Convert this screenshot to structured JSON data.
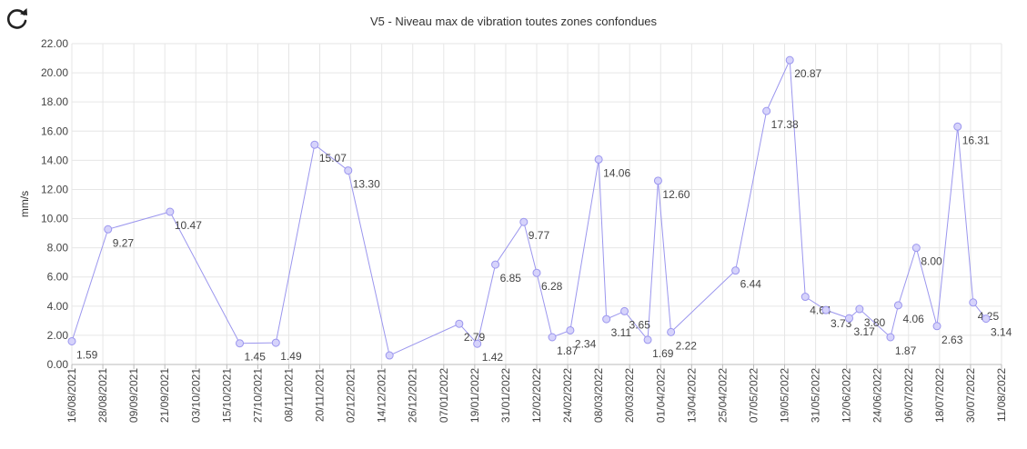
{
  "chart_data": {
    "type": "line",
    "title": "V5 - Niveau max de vibration toutes zones confondues",
    "xlabel": "",
    "ylabel": "mm/s",
    "ylim": [
      0,
      22
    ],
    "y_ticks": [
      "0.00",
      "2.00",
      "4.00",
      "6.00",
      "8.00",
      "10.00",
      "12.00",
      "14.00",
      "16.00",
      "18.00",
      "20.00",
      "22.00"
    ],
    "x_ticks": [
      "16/08/2021",
      "28/08/2021",
      "09/09/2021",
      "21/09/2021",
      "03/10/2021",
      "15/10/2021",
      "27/10/2021",
      "08/11/2021",
      "20/11/2021",
      "02/12/2021",
      "14/12/2021",
      "26/12/2021",
      "07/01/2022",
      "19/01/2022",
      "31/01/2022",
      "12/02/2022",
      "24/02/2022",
      "08/03/2022",
      "20/03/2022",
      "01/04/2022",
      "13/04/2022",
      "25/04/2022",
      "07/05/2022",
      "19/05/2022",
      "31/05/2022",
      "12/06/2022",
      "24/06/2022",
      "06/07/2022",
      "18/07/2022",
      "30/07/2022",
      "11/08/2022"
    ],
    "xlim": [
      "2021-08-16",
      "2022-08-11"
    ],
    "grid": true,
    "series": [
      {
        "name": "",
        "color": "#9b96ee",
        "marker_fill": "#d6d3fb",
        "points": [
          {
            "x": "2021-08-16",
            "y": 1.59,
            "label": "1.59"
          },
          {
            "x": "2021-08-30",
            "y": 9.27,
            "label": "9.27"
          },
          {
            "x": "2021-09-23",
            "y": 10.47,
            "label": "10.47"
          },
          {
            "x": "2021-10-20",
            "y": 1.45,
            "label": "1.45"
          },
          {
            "x": "2021-11-03",
            "y": 1.49,
            "label": "1.49"
          },
          {
            "x": "2021-11-18",
            "y": 15.07,
            "label": "15.07"
          },
          {
            "x": "2021-12-01",
            "y": 13.3,
            "label": "13.30"
          },
          {
            "x": "2021-12-17",
            "y": 0.62,
            "label": ""
          },
          {
            "x": "2022-01-13",
            "y": 2.79,
            "label": "2.79"
          },
          {
            "x": "2022-01-20",
            "y": 1.42,
            "label": "1.42"
          },
          {
            "x": "2022-01-27",
            "y": 6.85,
            "label": "6.85"
          },
          {
            "x": "2022-02-07",
            "y": 9.77,
            "label": "9.77"
          },
          {
            "x": "2022-02-12",
            "y": 6.28,
            "label": "6.28"
          },
          {
            "x": "2022-02-18",
            "y": 1.87,
            "label": "1.87"
          },
          {
            "x": "2022-02-25",
            "y": 2.34,
            "label": "2.34"
          },
          {
            "x": "2022-03-08",
            "y": 14.06,
            "label": "14.06"
          },
          {
            "x": "2022-03-11",
            "y": 3.11,
            "label": "3.11"
          },
          {
            "x": "2022-03-18",
            "y": 3.65,
            "label": "3.65"
          },
          {
            "x": "2022-03-27",
            "y": 1.69,
            "label": "1.69"
          },
          {
            "x": "2022-03-31",
            "y": 12.6,
            "label": "12.60"
          },
          {
            "x": "2022-04-05",
            "y": 2.22,
            "label": "2.22"
          },
          {
            "x": "2022-04-30",
            "y": 6.44,
            "label": "6.44"
          },
          {
            "x": "2022-05-12",
            "y": 17.38,
            "label": "17.38"
          },
          {
            "x": "2022-05-21",
            "y": 20.87,
            "label": "20.87"
          },
          {
            "x": "2022-05-27",
            "y": 4.64,
            "label": "4.64"
          },
          {
            "x": "2022-06-04",
            "y": 3.73,
            "label": "3.73"
          },
          {
            "x": "2022-06-13",
            "y": 3.17,
            "label": "3.17"
          },
          {
            "x": "2022-06-17",
            "y": 3.8,
            "label": "3.80"
          },
          {
            "x": "2022-06-29",
            "y": 1.87,
            "label": "1.87"
          },
          {
            "x": "2022-07-02",
            "y": 4.06,
            "label": "4.06"
          },
          {
            "x": "2022-07-09",
            "y": 8.0,
            "label": "8.00"
          },
          {
            "x": "2022-07-17",
            "y": 2.63,
            "label": "2.63"
          },
          {
            "x": "2022-07-25",
            "y": 16.31,
            "label": "16.31"
          },
          {
            "x": "2022-07-31",
            "y": 4.25,
            "label": "4.25"
          },
          {
            "x": "2022-08-05",
            "y": 3.14,
            "label": "3.14"
          }
        ]
      }
    ]
  },
  "toolbar": {
    "refresh_icon": "refresh-icon"
  }
}
